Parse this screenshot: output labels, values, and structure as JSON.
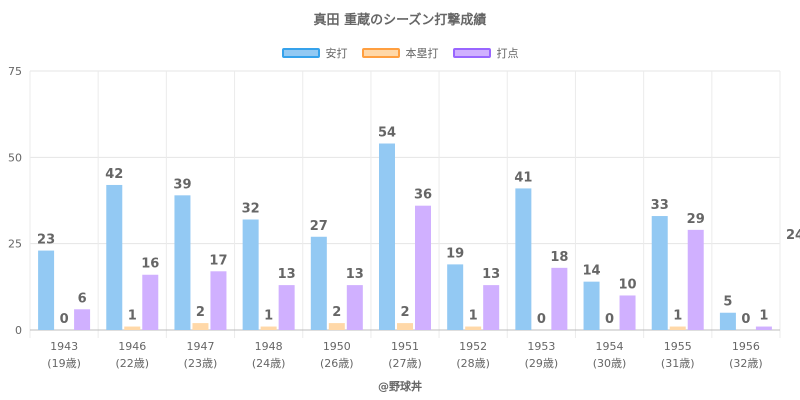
{
  "chart_data": {
    "type": "bar",
    "title": "真田 重蔵のシーズン打撃成績",
    "categories": [
      "1943",
      "1946",
      "1947",
      "1948",
      "1950",
      "1951",
      "1952",
      "1953",
      "1954",
      "1955",
      "1956"
    ],
    "sublabels": [
      "(19歳)",
      "(22歳)",
      "(23歳)",
      "(24歳)",
      "(26歳)",
      "(27歳)",
      "(28歳)",
      "(29歳)",
      "(30歳)",
      "(31歳)",
      "(32歳)"
    ],
    "series": [
      {
        "name": "安打",
        "values": [
          23,
          42,
          39,
          32,
          27,
          54,
          19,
          41,
          14,
          33,
          5
        ],
        "color": "#93c9f3",
        "border": "#36a2eb"
      },
      {
        "name": "本塁打",
        "values": [
          0,
          1,
          2,
          1,
          2,
          2,
          1,
          0,
          0,
          1,
          0
        ],
        "color": "#ffd8a8",
        "border": "#ff9f40"
      },
      {
        "name": "打点",
        "values": [
          6,
          16,
          17,
          13,
          13,
          36,
          13,
          18,
          10,
          29,
          1
        ],
        "color": "#d0b0ff",
        "border": "#9966ff"
      }
    ],
    "ylim": [
      0,
      75
    ],
    "yticks": [
      0,
      25,
      50,
      75
    ],
    "legend_position": "top",
    "grid": true,
    "side_value": "24"
  },
  "credit": "@野球丼"
}
